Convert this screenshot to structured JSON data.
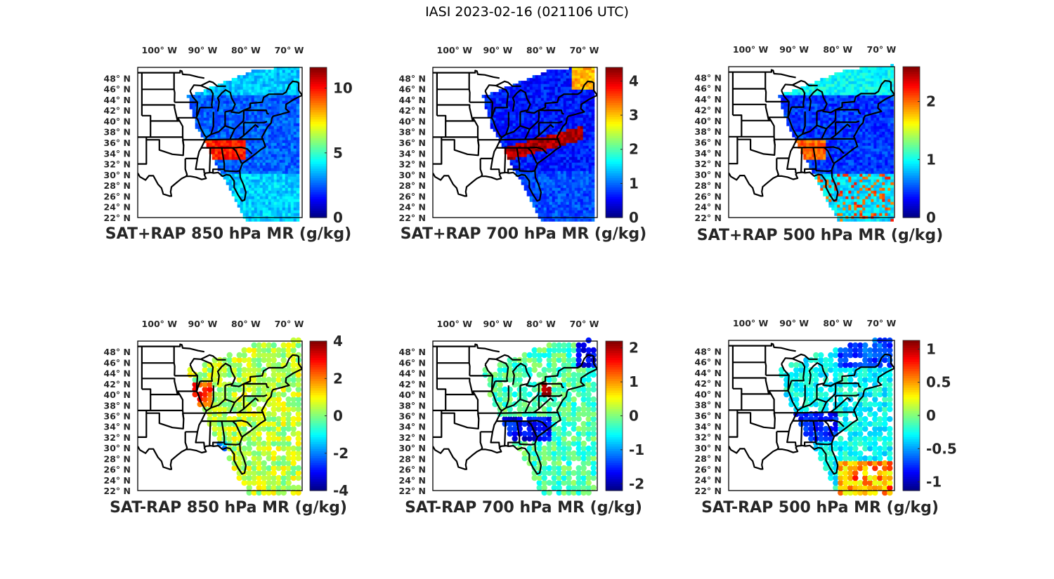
{
  "figure_title": "IASI 2023-02-16 (021106 UTC)",
  "chart_data": [
    {
      "type": "heatmap",
      "panel": "top-left",
      "title": "SAT+RAP 850 hPa MR (g/kg)",
      "xlabel": "",
      "ylabel": "",
      "x_ticks": [
        "100° W",
        "90° W",
        "80° W",
        "70° W"
      ],
      "y_ticks": [
        "48° N",
        "46° N",
        "44° N",
        "42° N",
        "40° N",
        "38° N",
        "36° N",
        "34° N",
        "32° N",
        "30° N",
        "28° N",
        "26° N",
        "24° N",
        "22° N"
      ],
      "lon_range": [
        -105,
        -67
      ],
      "lat_range": [
        22,
        50
      ],
      "colormap": "jet",
      "colorbar": {
        "range": [
          0,
          11.6
        ],
        "ticks": [
          0,
          5,
          10
        ]
      },
      "field_summary": "mostly 1–4 g/kg over Great Lakes/Northeast; 9–11 g/kg band over Tennessee/Alabama/Georgia at ~33–36°N; 3–6 g/kg over Gulf/Florida waters"
    },
    {
      "type": "heatmap",
      "panel": "top-middle",
      "title": "SAT+RAP 700 hPa MR (g/kg)",
      "xlabel": "",
      "ylabel": "",
      "x_ticks": [
        "100° W",
        "90° W",
        "80° W",
        "70° W"
      ],
      "y_ticks": [
        "48° N",
        "46° N",
        "44° N",
        "42° N",
        "40° N",
        "38° N",
        "36° N",
        "34° N",
        "32° N",
        "30° N",
        "28° N",
        "26° N",
        "24° N",
        "22° N"
      ],
      "lon_range": [
        -105,
        -67
      ],
      "lat_range": [
        22,
        50
      ],
      "colormap": "jet",
      "colorbar": {
        "range": [
          0,
          4.4
        ],
        "ticks": [
          0,
          1,
          2,
          3,
          4
        ]
      },
      "field_summary": "0–1 g/kg across most of domain; 4+ g/kg band from Mississippi/Alabama northeast to offshore North Carolina; ~3 g/kg over northern New England"
    },
    {
      "type": "heatmap",
      "panel": "top-right",
      "title": "SAT+RAP 500 hPa MR (g/kg)",
      "xlabel": "",
      "ylabel": "",
      "x_ticks": [
        "100° W",
        "90° W",
        "80° W",
        "70° W"
      ],
      "y_ticks": [
        "48° N",
        "46° N",
        "44° N",
        "42° N",
        "40° N",
        "38° N",
        "36° N",
        "34° N",
        "32° N",
        "30° N",
        "28° N",
        "26° N",
        "24° N",
        "22° N"
      ],
      "lon_range": [
        -105,
        -67
      ],
      "lat_range": [
        22,
        50
      ],
      "colormap": "jet",
      "colorbar": {
        "range": [
          0,
          2.6
        ],
        "ticks": [
          0,
          1,
          2
        ]
      },
      "field_summary": "0.2–0.6 g/kg over north; ~2 g/kg over Tennessee/Alabama; 1.5–2.5 g/kg patches over Atlantic/Gulf south of 30°N"
    },
    {
      "type": "heatmap",
      "panel": "bottom-left",
      "title": "SAT-RAP 850 hPa MR (g/kg)",
      "xlabel": "",
      "ylabel": "",
      "x_ticks": [
        "100° W",
        "90° W",
        "80° W",
        "70° W"
      ],
      "y_ticks": [
        "48° N",
        "46° N",
        "44° N",
        "42° N",
        "40° N",
        "38° N",
        "36° N",
        "34° N",
        "32° N",
        "30° N",
        "28° N",
        "26° N",
        "24° N",
        "22° N"
      ],
      "lon_range": [
        -105,
        -67
      ],
      "lat_range": [
        22,
        50
      ],
      "colormap": "jet",
      "colorbar": {
        "range": [
          -4,
          4
        ],
        "ticks": [
          -4,
          -2,
          0,
          2,
          4
        ]
      },
      "field_summary": "mostly -0.5 to 1 g/kg; up to +3 near Illinois; -3 to -4 near Gulf coast"
    },
    {
      "type": "heatmap",
      "panel": "bottom-middle",
      "title": "SAT-RAP 700 hPa MR (g/kg)",
      "xlabel": "",
      "ylabel": "",
      "x_ticks": [
        "100° W",
        "90° W",
        "80° W",
        "70° W"
      ],
      "y_ticks": [
        "48° N",
        "46° N",
        "44° N",
        "42° N",
        "40° N",
        "38° N",
        "36° N",
        "34° N",
        "32° N",
        "30° N",
        "28° N",
        "26° N",
        "24° N",
        "22° N"
      ],
      "lon_range": [
        -105,
        -67
      ],
      "lat_range": [
        22,
        50
      ],
      "colormap": "jet",
      "colorbar": {
        "range": [
          -2.2,
          2.2
        ],
        "ticks": [
          -2,
          -1,
          0,
          1,
          2
        ]
      },
      "field_summary": "mostly -0.5 to 0.3 g/kg; -2 g/kg patches over Alabama/Carolinas and northern Maine; +2 over Pennsylvania"
    },
    {
      "type": "heatmap",
      "panel": "bottom-right",
      "title": "SAT-RAP 500 hPa MR (g/kg)",
      "xlabel": "",
      "ylabel": "",
      "x_ticks": [
        "100° W",
        "90° W",
        "80° W",
        "70° W"
      ],
      "y_ticks": [
        "48° N",
        "46° N",
        "44° N",
        "42° N",
        "40° N",
        "38° N",
        "36° N",
        "34° N",
        "32° N",
        "30° N",
        "28° N",
        "26° N",
        "24° N",
        "22° N"
      ],
      "lon_range": [
        -105,
        -67
      ],
      "lat_range": [
        22,
        50
      ],
      "colormap": "jet",
      "colorbar": {
        "range": [
          -1.13,
          1.13
        ],
        "ticks": [
          -1,
          -0.5,
          0,
          0.5,
          1
        ]
      },
      "field_summary": "mostly -0.5 to 0 g/kg; -1 over southeast US interior; +0.5 to +0.8 over subtropical Atlantic"
    }
  ]
}
